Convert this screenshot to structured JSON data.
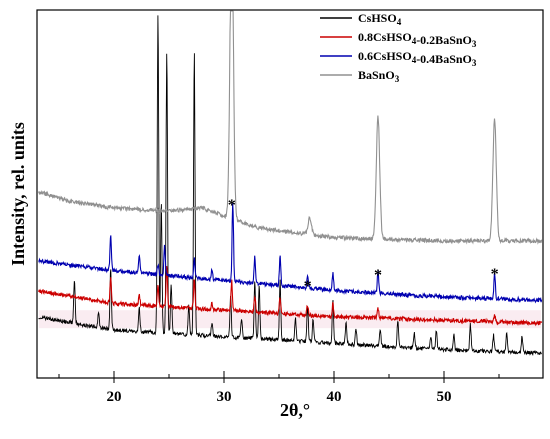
{
  "chart_data": {
    "type": "line",
    "title": "",
    "xlabel": "2θ,°",
    "ylabel": "Intensity, rel. units",
    "xlim": [
      13,
      59
    ],
    "x_ticks": [
      20,
      30,
      40,
      50
    ],
    "y_ticks_labeled": false,
    "grid": false,
    "legend_position": "top-right",
    "series": [
      {
        "name": "CsHSO4",
        "color": "#000000",
        "baseline": [
          [
            13,
            0.04
          ],
          [
            20,
            0.0
          ],
          [
            30,
            -0.02
          ],
          [
            40,
            -0.04
          ],
          [
            50,
            -0.06
          ],
          [
            59,
            -0.07
          ]
        ],
        "peaks": [
          [
            16.4,
            0.13
          ],
          [
            18.6,
            0.05
          ],
          [
            19.7,
            0.19
          ],
          [
            22.3,
            0.07
          ],
          [
            24.0,
            0.97
          ],
          [
            24.3,
            0.4
          ],
          [
            24.8,
            0.86
          ],
          [
            25.2,
            0.15
          ],
          [
            26.8,
            0.09
          ],
          [
            27.3,
            0.86
          ],
          [
            28.9,
            0.04
          ],
          [
            30.6,
            0.12
          ],
          [
            31.6,
            0.06
          ],
          [
            32.8,
            0.17
          ],
          [
            33.2,
            0.16
          ],
          [
            35.1,
            0.18
          ],
          [
            36.5,
            0.07
          ],
          [
            37.6,
            0.11
          ],
          [
            38.1,
            0.07
          ],
          [
            39.9,
            0.13
          ],
          [
            41.1,
            0.07
          ],
          [
            42.0,
            0.05
          ],
          [
            44.2,
            0.05
          ],
          [
            45.8,
            0.08
          ],
          [
            47.3,
            0.05
          ],
          [
            48.8,
            0.04
          ],
          [
            49.3,
            0.06
          ],
          [
            50.9,
            0.05
          ],
          [
            52.4,
            0.08
          ],
          [
            54.5,
            0.05
          ],
          [
            55.7,
            0.06
          ],
          [
            57.1,
            0.05
          ]
        ]
      },
      {
        "name": "0.8CsHSO4-0.2BaSnO3",
        "color": "#cc0000",
        "baseline": [
          [
            13,
            0.12
          ],
          [
            20,
            0.08
          ],
          [
            30,
            0.06
          ],
          [
            40,
            0.04
          ],
          [
            50,
            0.03
          ],
          [
            59,
            0.02
          ]
        ],
        "peaks": [
          [
            19.7,
            0.08
          ],
          [
            22.3,
            0.03
          ],
          [
            24.0,
            0.06
          ],
          [
            24.8,
            0.12
          ],
          [
            27.3,
            0.09
          ],
          [
            28.9,
            0.02
          ],
          [
            30.7,
            0.09
          ],
          [
            32.8,
            0.05
          ],
          [
            35.1,
            0.05
          ],
          [
            37.6,
            0.03
          ],
          [
            39.9,
            0.04
          ],
          [
            44.0,
            0.03
          ],
          [
            54.6,
            0.02
          ]
        ]
      },
      {
        "name": "0.6CsHSO4-0.4BaSnO3",
        "color": "#0000b0",
        "baseline": [
          [
            13,
            0.21
          ],
          [
            20,
            0.18
          ],
          [
            30,
            0.15
          ],
          [
            40,
            0.12
          ],
          [
            50,
            0.1
          ],
          [
            59,
            0.09
          ]
        ],
        "peaks": [
          [
            19.7,
            0.11
          ],
          [
            22.3,
            0.05
          ],
          [
            24.0,
            0.03
          ],
          [
            24.6,
            0.09
          ],
          [
            27.3,
            0.06
          ],
          [
            28.9,
            0.03
          ],
          [
            30.8,
            0.24
          ],
          [
            32.8,
            0.08
          ],
          [
            35.1,
            0.09
          ],
          [
            37.6,
            0.04
          ],
          [
            39.9,
            0.05
          ],
          [
            44.0,
            0.07
          ],
          [
            54.6,
            0.08
          ]
        ]
      },
      {
        "name": "BaSnO3",
        "color": "#909090",
        "baseline": [
          [
            13,
            0.42
          ],
          [
            16,
            0.39
          ],
          [
            20,
            0.37
          ],
          [
            25,
            0.36
          ],
          [
            28,
            0.37
          ],
          [
            33,
            0.31
          ],
          [
            40,
            0.28
          ],
          [
            50,
            0.27
          ],
          [
            59,
            0.27
          ]
        ],
        "peaks": [
          [
            30.7,
            0.9
          ],
          [
            37.8,
            0.05
          ],
          [
            44.0,
            0.37
          ],
          [
            54.6,
            0.37
          ]
        ]
      }
    ],
    "annotations": [
      {
        "text": "*",
        "x": 30.7
      },
      {
        "text": "*",
        "x": 37.6
      },
      {
        "text": "*",
        "x": 44.0
      },
      {
        "text": "*",
        "x": 54.6
      }
    ]
  },
  "legend": {
    "items": [
      {
        "parts": [
          [
            "CsHSO",
            ""
          ],
          [
            "4",
            "sub"
          ]
        ],
        "color": "#000000"
      },
      {
        "parts": [
          [
            "0.8CsHSO",
            ""
          ],
          [
            "4",
            "sub"
          ],
          [
            "-0.2BaSnO",
            ""
          ],
          [
            "3",
            "sub"
          ]
        ],
        "color": "#cc0000"
      },
      {
        "parts": [
          [
            "0.6CsHSO",
            ""
          ],
          [
            "4",
            "sub"
          ],
          [
            "-0.4BaSnO",
            ""
          ],
          [
            "3",
            "sub"
          ]
        ],
        "color": "#0000b0"
      },
      {
        "parts": [
          [
            "BaSnO",
            ""
          ],
          [
            "3",
            "sub"
          ]
        ],
        "color": "#909090"
      }
    ]
  }
}
